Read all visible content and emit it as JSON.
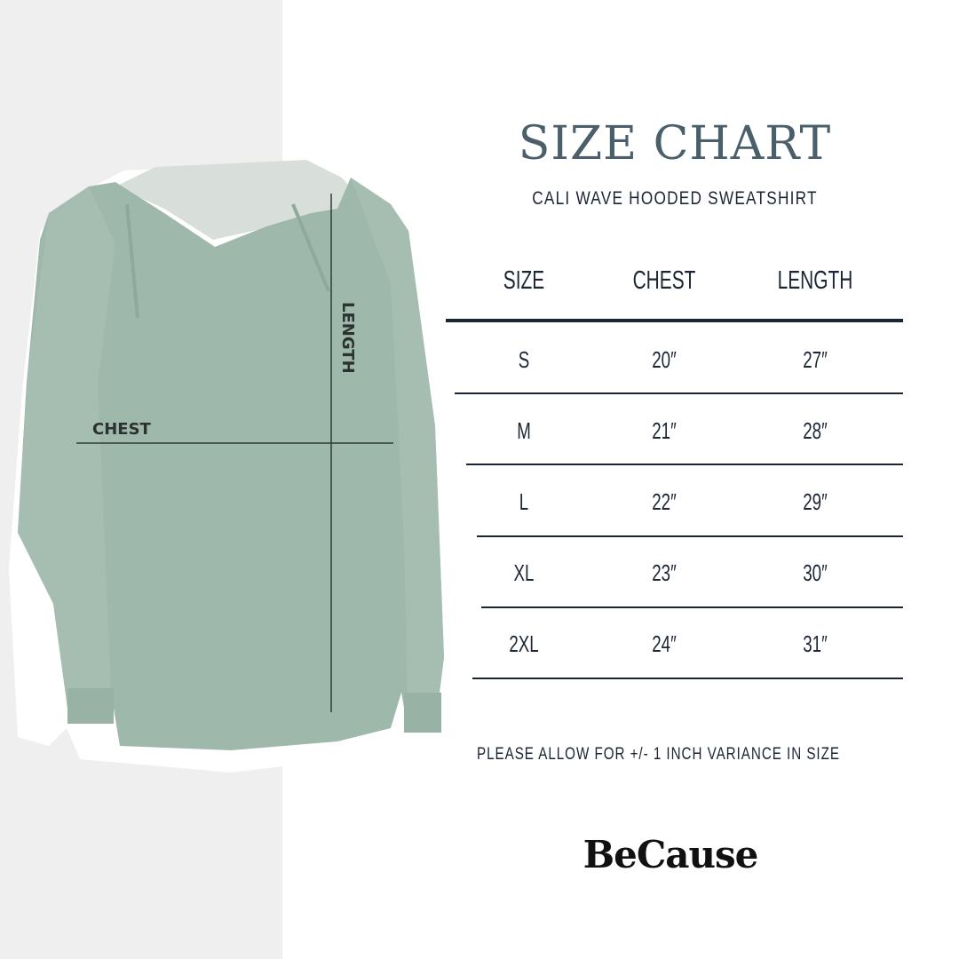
{
  "header": {
    "title": "SIZE CHART",
    "subtitle": "CALI WAVE HOODED SWEATSHIRT"
  },
  "diagram": {
    "chest_label": "CHEST",
    "length_label": "LENGTH",
    "garment_color": "#9fb8ac"
  },
  "table": {
    "columns": [
      "SIZE",
      "CHEST",
      "LENGTH"
    ],
    "rows": [
      {
        "size": "S",
        "chest": "20″",
        "length": "27″"
      },
      {
        "size": "M",
        "chest": "21″",
        "length": "28″"
      },
      {
        "size": "L",
        "chest": "22″",
        "length": "29″"
      },
      {
        "size": "XL",
        "chest": "23″",
        "length": "30″"
      },
      {
        "size": "2XL",
        "chest": "24″",
        "length": "31″"
      }
    ]
  },
  "note": "PLEASE ALLOW FOR +/- 1 INCH VARIANCE IN SIZE",
  "brand": {
    "logo": "BeCause"
  },
  "colors": {
    "title": "#4a5f6a",
    "text": "#1c2533",
    "left_panel": "#efefef"
  }
}
